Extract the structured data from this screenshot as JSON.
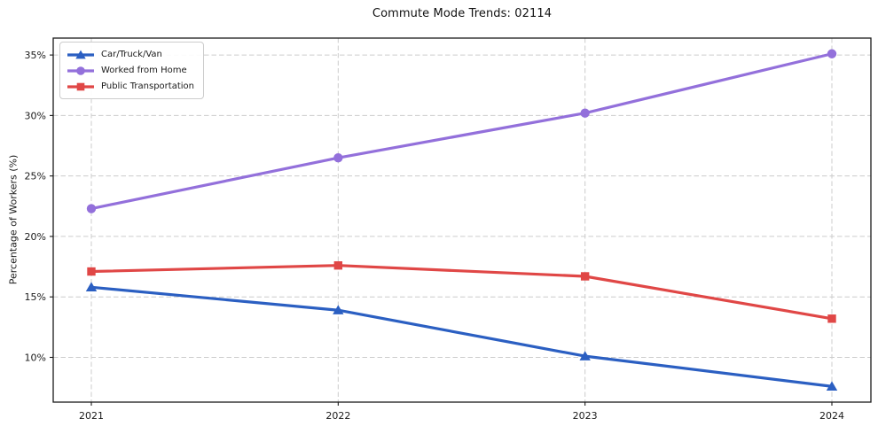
{
  "chart_data": {
    "type": "line",
    "title": "Commute Mode Trends: 02114",
    "xlabel": "",
    "ylabel": "Percentage of Workers (%)",
    "x": [
      2021,
      2022,
      2023,
      2024
    ],
    "x_tick_labels": [
      "2021",
      "2022",
      "2023",
      "2024"
    ],
    "y_ticks": [
      10,
      15,
      20,
      25,
      30,
      35
    ],
    "y_tick_labels": [
      "10%",
      "15%",
      "20%",
      "25%",
      "30%",
      "35%"
    ],
    "ylim": [
      6.3,
      36.4
    ],
    "grid": true,
    "legend_position": "upper-left",
    "series": [
      {
        "name": "Car/Truck/Van",
        "color": "#2b5fc2",
        "marker": "triangle",
        "values": [
          15.8,
          13.9,
          10.1,
          7.6
        ]
      },
      {
        "name": "Worked from Home",
        "color": "#9370db",
        "marker": "circle",
        "values": [
          22.3,
          26.5,
          30.2,
          35.1
        ]
      },
      {
        "name": "Public Transportation",
        "color": "#e04746",
        "marker": "square",
        "values": [
          17.1,
          17.6,
          16.7,
          13.2
        ]
      }
    ]
  }
}
